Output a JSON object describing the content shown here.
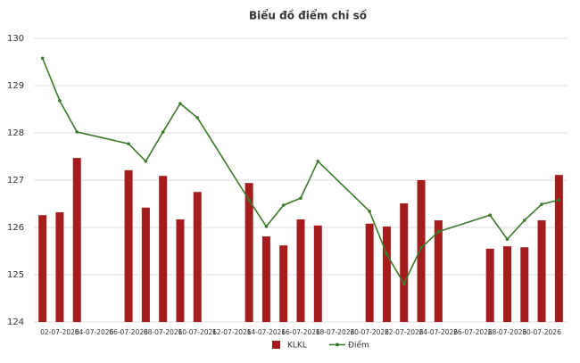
{
  "chart_data": {
    "type": "bar_line",
    "title": "Biểu đồ điểm chỉ số",
    "categories": [
      null,
      "02-07-2026",
      null,
      "04-07-2026",
      null,
      "06-07-2026",
      null,
      "08-07-2026",
      null,
      "10-07-2026",
      null,
      "12-07-2026",
      null,
      "14-07-2026",
      null,
      "16-07-2026",
      null,
      "18-07-2026",
      null,
      "20-07-2026",
      null,
      "22-07-2026",
      null,
      "24-07-2026",
      null,
      "26-07-2026",
      null,
      "28-07-2026",
      null,
      "30-07-2026",
      null
    ],
    "series": [
      {
        "name": "KLKL",
        "kind": "bar",
        "color": "#a51c1c",
        "values": [
          126.26,
          126.32,
          127.47,
          null,
          null,
          127.21,
          126.42,
          127.09,
          126.17,
          126.75,
          null,
          null,
          126.94,
          125.81,
          125.62,
          126.17,
          126.04,
          null,
          null,
          126.08,
          126.02,
          126.51,
          127.0,
          126.15,
          null,
          null,
          125.55,
          125.6,
          125.58,
          126.15,
          127.11
        ]
      },
      {
        "name": "Điểm",
        "kind": "line",
        "color": "#3b7a2a",
        "values": [
          129.58,
          128.68,
          128.02,
          null,
          null,
          127.77,
          127.4,
          128.02,
          128.62,
          128.32,
          null,
          null,
          126.58,
          126.02,
          126.47,
          126.62,
          127.4,
          null,
          null,
          126.34,
          125.43,
          124.81,
          125.57,
          125.91,
          null,
          null,
          126.26,
          125.75,
          126.15,
          126.49,
          126.58
        ]
      }
    ],
    "span_gaps": true,
    "ylim": [
      124,
      130
    ],
    "yticks": [
      124,
      125,
      126,
      127,
      128,
      129,
      130
    ],
    "grid": true,
    "legend": "bottom"
  }
}
